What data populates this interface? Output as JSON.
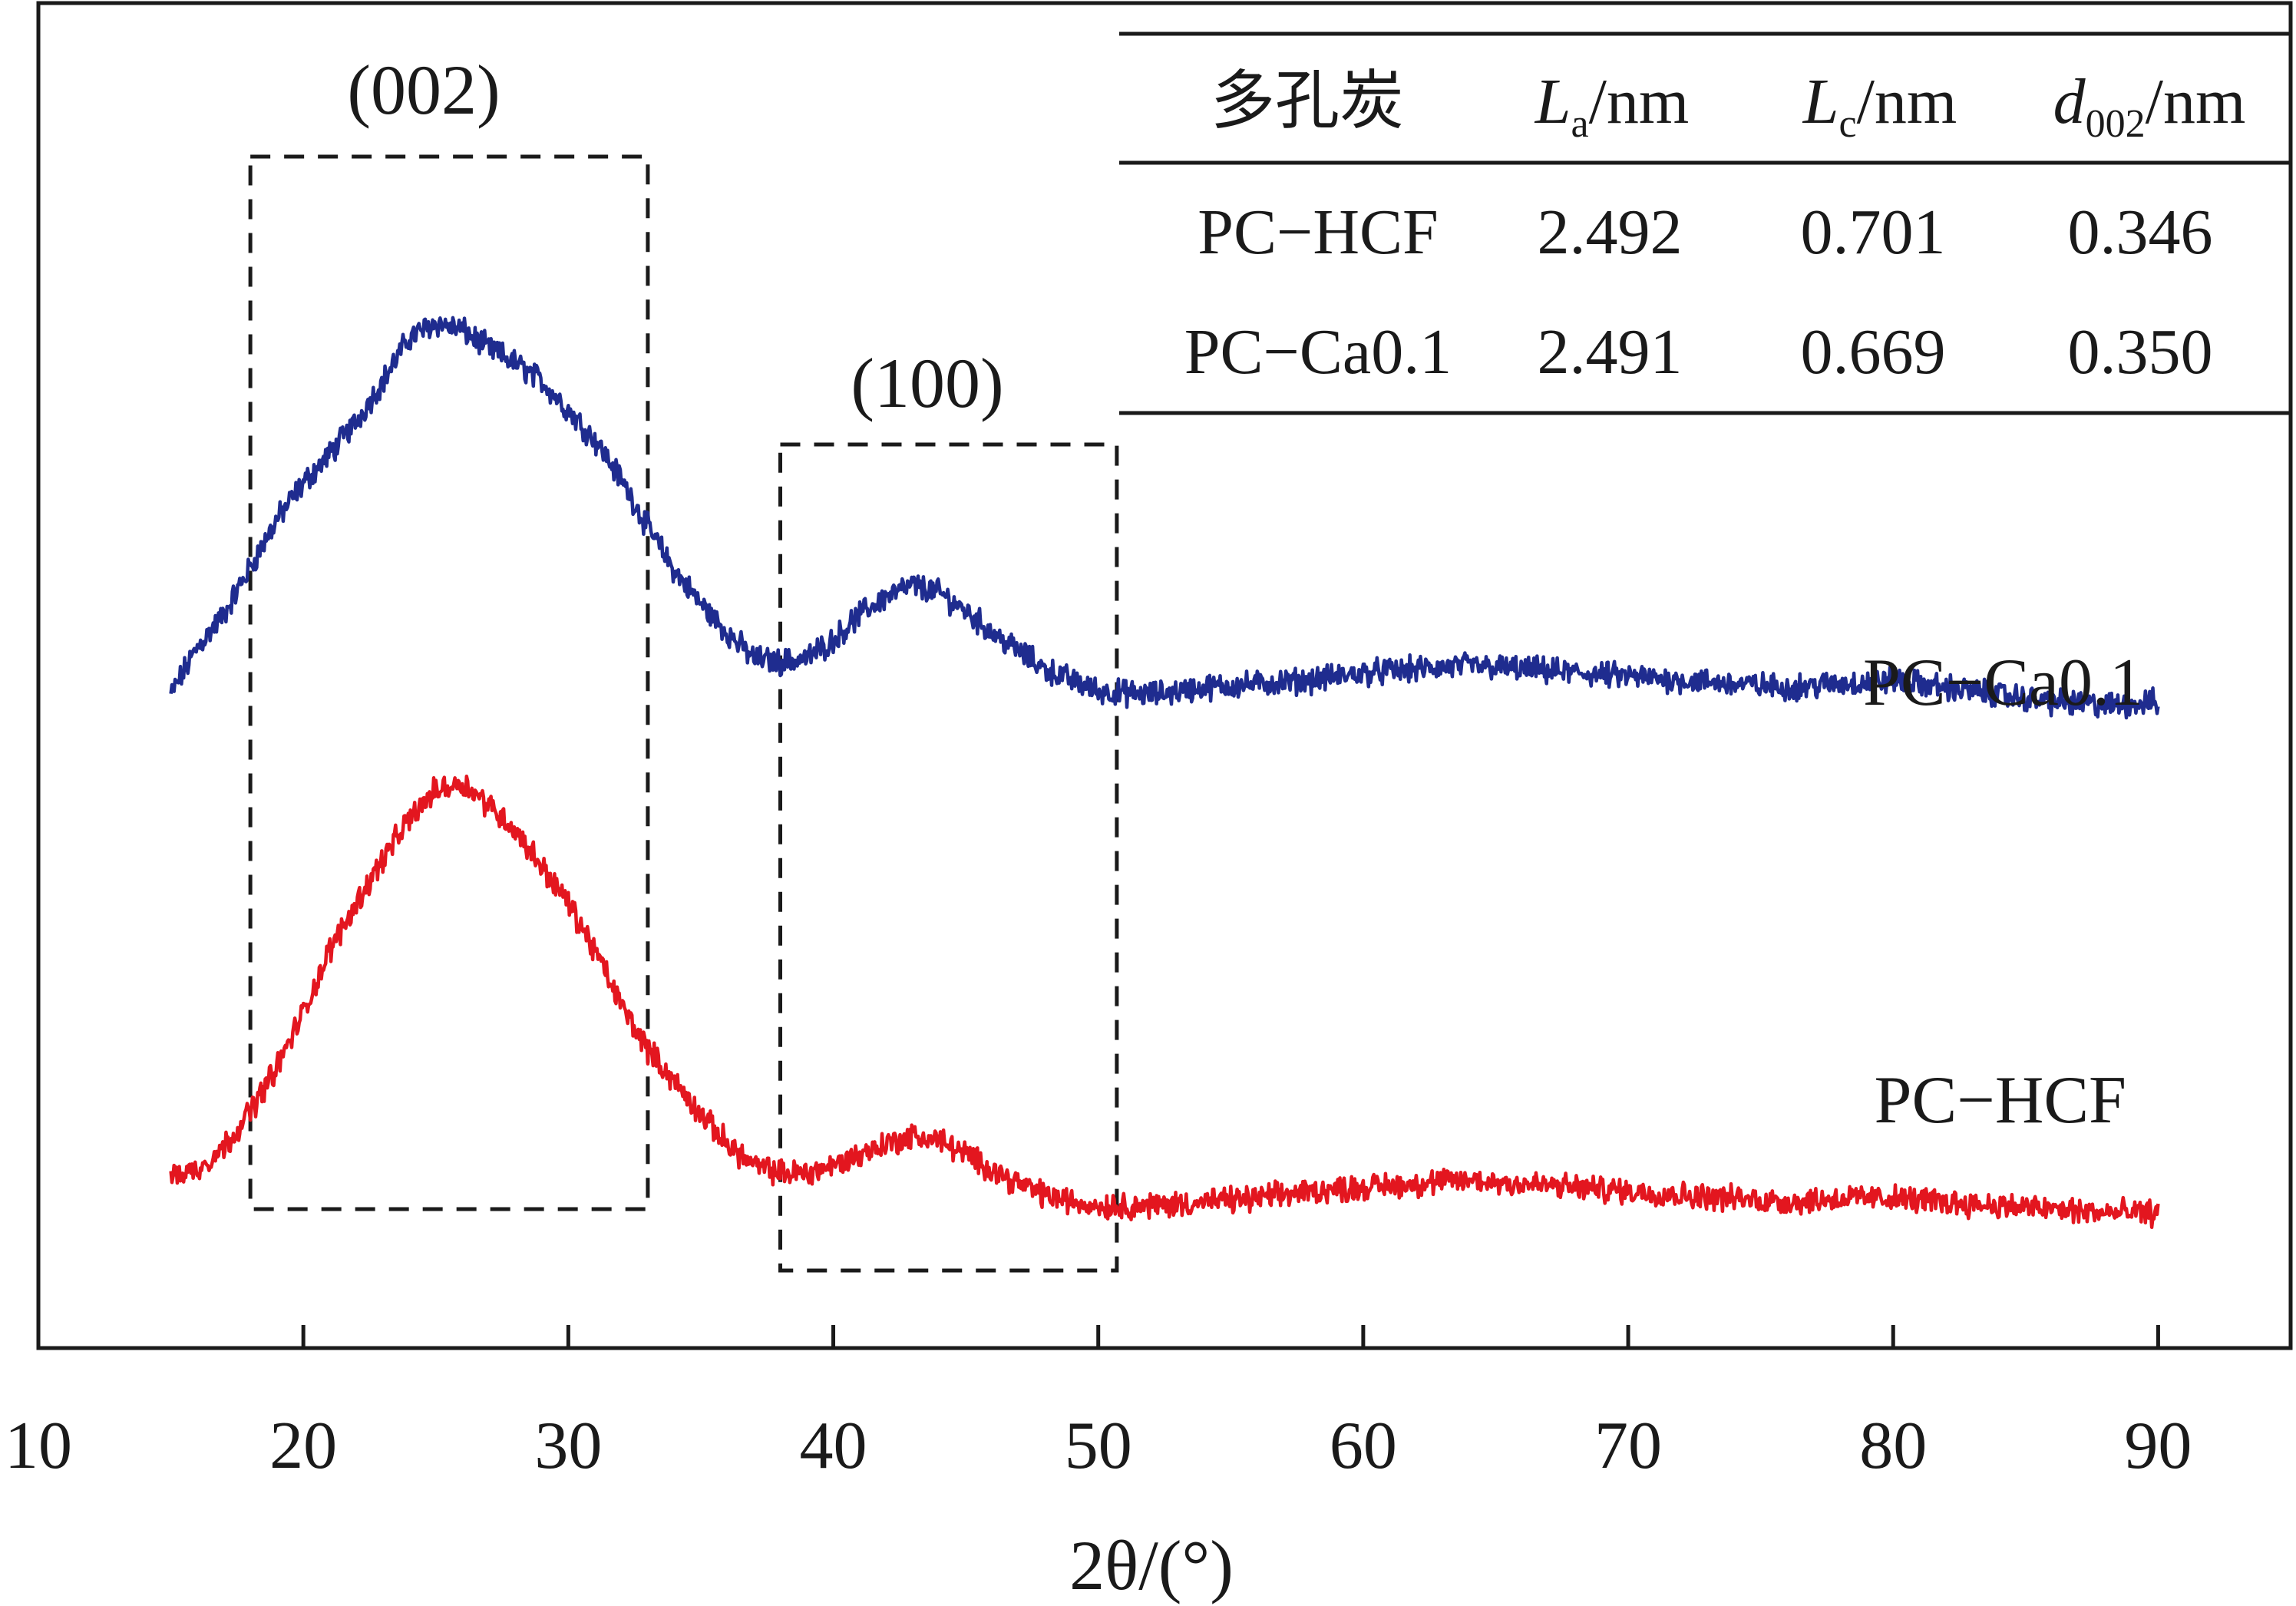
{
  "chart_data": {
    "type": "line",
    "xlabel": "2θ/(°)",
    "xlim": [
      10,
      95
    ],
    "x_ticks": [
      10,
      20,
      30,
      40,
      50,
      60,
      70,
      80,
      90
    ],
    "x_tick_labels": [
      "10",
      "20",
      "30",
      "40",
      "50",
      "60",
      "70",
      "80",
      "90"
    ],
    "y_axis": {
      "ticks": "none",
      "labels": "none",
      "units": "arbitrary intensity"
    },
    "grid": false,
    "series": [
      {
        "name": "PC−Ca0.1",
        "color": "#1f2c8f",
        "x_range": [
          15,
          90
        ],
        "points": [
          [
            15,
            0.2
          ],
          [
            16,
            0.33
          ],
          [
            17,
            0.42
          ],
          [
            18,
            0.55
          ],
          [
            19,
            0.68
          ],
          [
            20,
            0.78
          ],
          [
            21,
            0.86
          ],
          [
            22,
            0.95
          ],
          [
            23,
            1.06
          ],
          [
            24,
            1.18
          ],
          [
            25,
            1.22
          ],
          [
            26,
            1.2
          ],
          [
            27,
            1.15
          ],
          [
            28,
            1.11
          ],
          [
            29,
            1.06
          ],
          [
            30,
            0.98
          ],
          [
            31,
            0.9
          ],
          [
            32,
            0.79
          ],
          [
            33,
            0.66
          ],
          [
            34,
            0.54
          ],
          [
            35,
            0.45
          ],
          [
            36,
            0.37
          ],
          [
            37,
            0.3
          ],
          [
            38,
            0.29
          ],
          [
            39,
            0.3
          ],
          [
            40,
            0.35
          ],
          [
            41,
            0.42
          ],
          [
            42,
            0.47
          ],
          [
            43,
            0.5
          ],
          [
            44,
            0.48
          ],
          [
            45,
            0.43
          ],
          [
            46,
            0.37
          ],
          [
            47,
            0.32
          ],
          [
            48,
            0.27
          ],
          [
            49,
            0.24
          ],
          [
            50,
            0.21
          ],
          [
            52,
            0.2
          ],
          [
            54,
            0.22
          ],
          [
            56,
            0.23
          ],
          [
            58,
            0.24
          ],
          [
            60,
            0.26
          ],
          [
            62,
            0.27
          ],
          [
            64,
            0.28
          ],
          [
            66,
            0.27
          ],
          [
            68,
            0.26
          ],
          [
            70,
            0.25
          ],
          [
            72,
            0.24
          ],
          [
            74,
            0.23
          ],
          [
            76,
            0.22
          ],
          [
            78,
            0.23
          ],
          [
            80,
            0.24
          ],
          [
            82,
            0.22
          ],
          [
            84,
            0.2
          ],
          [
            86,
            0.18
          ],
          [
            88,
            0.17
          ],
          [
            90,
            0.18
          ]
        ]
      },
      {
        "name": "PC−HCF",
        "color": "#e3161f",
        "x_range": [
          15,
          90
        ],
        "points": [
          [
            15,
            0.1
          ],
          [
            16,
            0.12
          ],
          [
            17,
            0.18
          ],
          [
            18,
            0.28
          ],
          [
            19,
            0.4
          ],
          [
            20,
            0.55
          ],
          [
            21,
            0.72
          ],
          [
            22,
            0.85
          ],
          [
            23,
            0.97
          ],
          [
            24,
            1.08
          ],
          [
            25,
            1.16
          ],
          [
            26,
            1.18
          ],
          [
            27,
            1.12
          ],
          [
            28,
            1.05
          ],
          [
            29,
            0.95
          ],
          [
            30,
            0.85
          ],
          [
            31,
            0.72
          ],
          [
            32,
            0.57
          ],
          [
            33,
            0.45
          ],
          [
            34,
            0.36
          ],
          [
            35,
            0.27
          ],
          [
            36,
            0.19
          ],
          [
            37,
            0.13
          ],
          [
            38,
            0.11
          ],
          [
            39,
            0.11
          ],
          [
            40,
            0.13
          ],
          [
            41,
            0.16
          ],
          [
            42,
            0.19
          ],
          [
            43,
            0.21
          ],
          [
            44,
            0.2
          ],
          [
            45,
            0.16
          ],
          [
            46,
            0.12
          ],
          [
            47,
            0.08
          ],
          [
            48,
            0.05
          ],
          [
            49,
            0.03
          ],
          [
            50,
            0.02
          ],
          [
            52,
            0.02
          ],
          [
            54,
            0.03
          ],
          [
            56,
            0.04
          ],
          [
            58,
            0.06
          ],
          [
            60,
            0.07
          ],
          [
            62,
            0.08
          ],
          [
            64,
            0.09
          ],
          [
            66,
            0.08
          ],
          [
            68,
            0.07
          ],
          [
            70,
            0.06
          ],
          [
            72,
            0.05
          ],
          [
            74,
            0.04
          ],
          [
            76,
            0.03
          ],
          [
            78,
            0.04
          ],
          [
            80,
            0.04
          ],
          [
            82,
            0.03
          ],
          [
            84,
            0.02
          ],
          [
            86,
            0.01
          ],
          [
            88,
            0.0
          ],
          [
            90,
            0.0
          ]
        ]
      }
    ],
    "annotations": {
      "boxes": [
        {
          "label": "(002)",
          "x_range": [
            18,
            33
          ]
        },
        {
          "label": "(100)",
          "x_range": [
            38,
            50.7
          ]
        }
      ]
    },
    "inset_table": {
      "headers": [
        {
          "main": "多孔炭",
          "sub": "",
          "unit": ""
        },
        {
          "main": "L",
          "sub": "a",
          "unit": "/nm"
        },
        {
          "main": "L",
          "sub": "c",
          "unit": "/nm"
        },
        {
          "main": "d",
          "sub": "002",
          "unit": "/nm"
        }
      ],
      "rows": [
        [
          "PC−HCF",
          "2.492",
          "0.701",
          "0.346"
        ],
        [
          "PC−Ca0.1",
          "2.491",
          "0.669",
          "0.350"
        ]
      ]
    }
  }
}
